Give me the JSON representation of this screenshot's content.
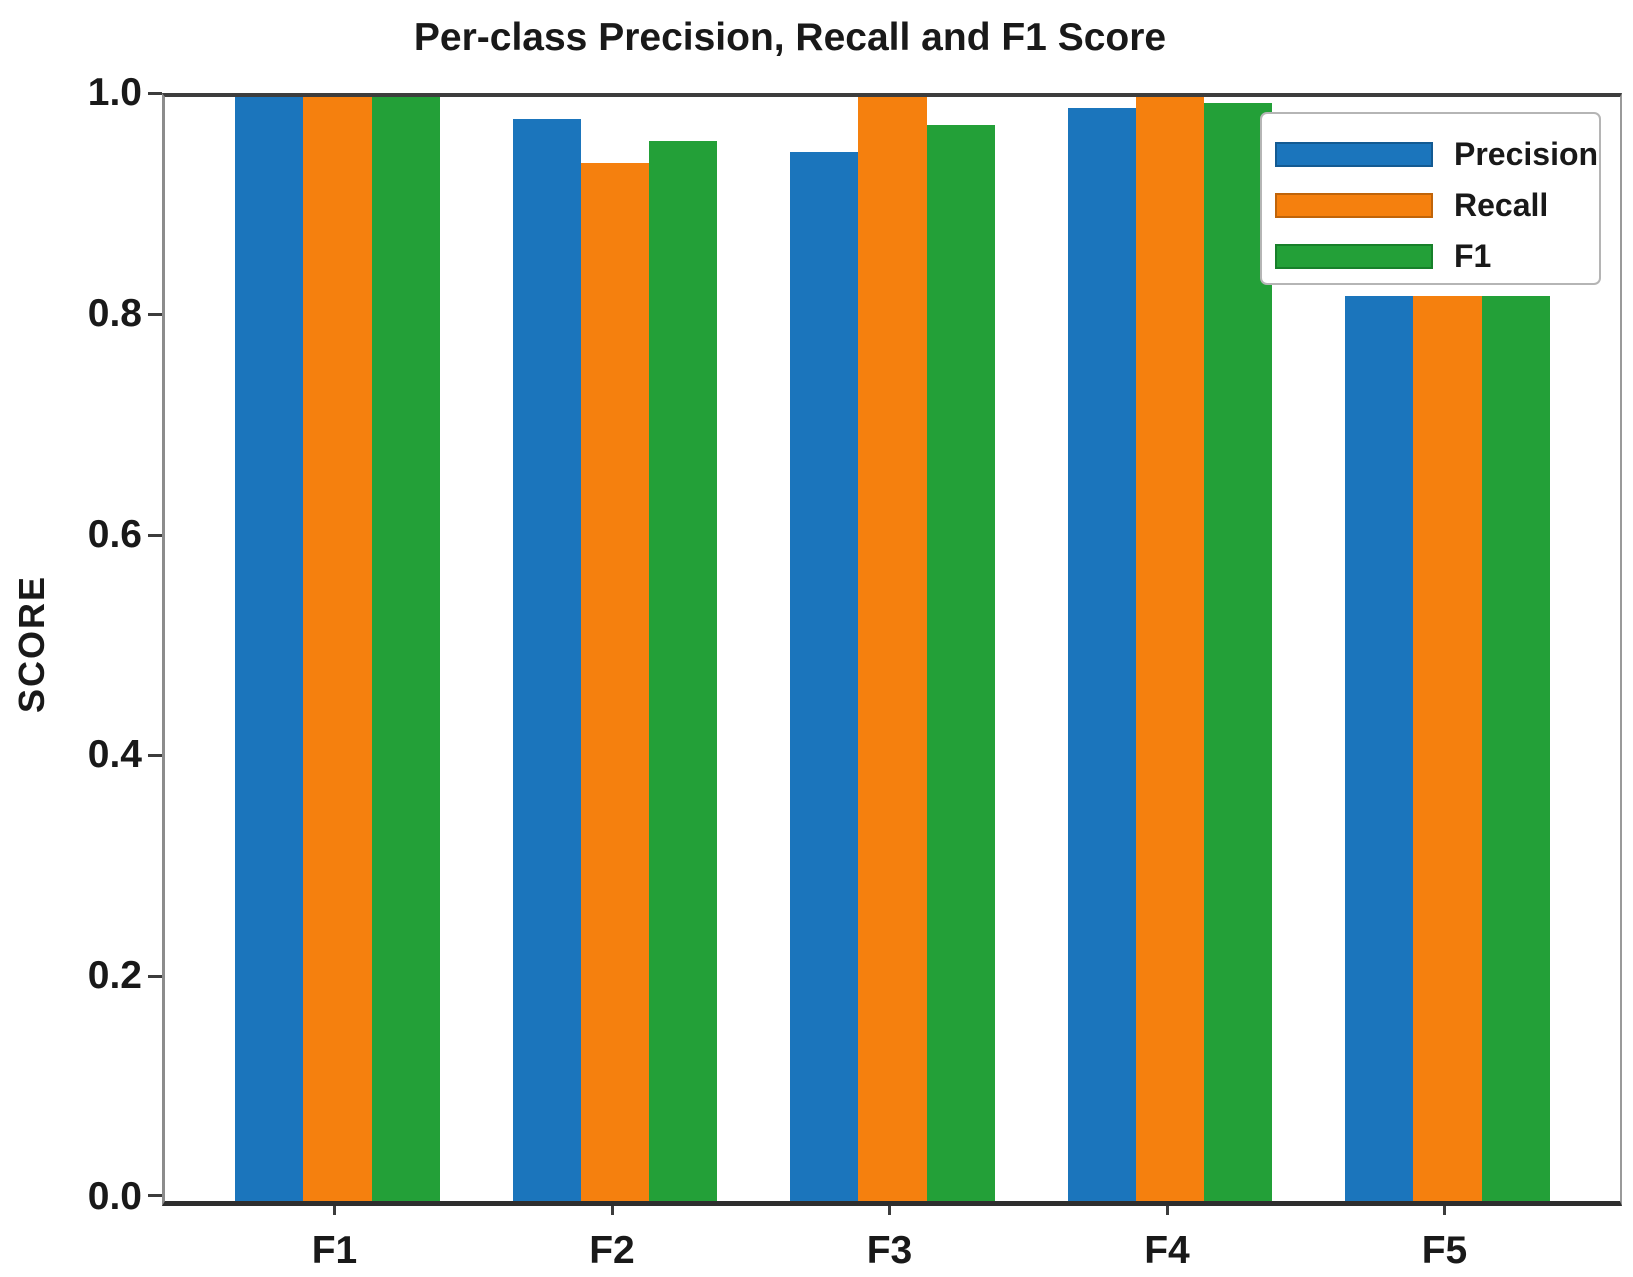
{
  "chart_data": {
    "type": "bar",
    "title": "Per-class Precision, Recall and F1 Score",
    "xlabel": "",
    "ylabel": "SCORE",
    "categories": [
      "F1",
      "F2",
      "F3",
      "F4",
      "F5"
    ],
    "series": [
      {
        "name": "Precision",
        "color": "#1b75bc",
        "edge": "#135a92",
        "values": [
          1.0,
          0.98,
          0.95,
          0.99,
          0.82
        ]
      },
      {
        "name": "Recall",
        "color": "#f5800e",
        "edge": "#c06409",
        "values": [
          1.0,
          0.94,
          1.0,
          1.0,
          0.82
        ]
      },
      {
        "name": "F1",
        "color": "#23a038",
        "edge": "#17802a",
        "values": [
          1.0,
          0.96,
          0.975,
          0.995,
          0.82
        ]
      }
    ],
    "ylim": [
      0.0,
      1.0
    ],
    "yticks": [
      1.0,
      0.8,
      0.6,
      0.4,
      0.2,
      0.0
    ],
    "ytick_labels": [
      "1.0",
      "0.8",
      "0.6",
      "0.4",
      "0.2",
      "0.0"
    ],
    "grid": false,
    "legend_position": "upper right",
    "legend_entries": [
      "Precision",
      "Recall",
      "F1"
    ]
  },
  "colors": {
    "text": "#191919",
    "spine_dark": "#3d3d3d",
    "spine_gray": "#8c8c8c",
    "legend_border": "#b5b5b5",
    "background": "#ffffff"
  }
}
